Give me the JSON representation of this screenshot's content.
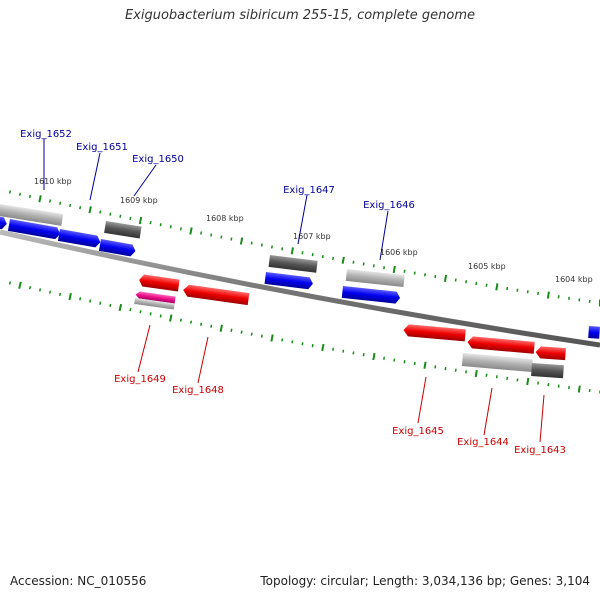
{
  "title": "Exiguobacterium sibiricum 255-15, complete genome",
  "accession_text": "Accession: NC_010556",
  "topology_text": "Topology: circular; Length: 3,034,136 bp; Genes: 3,104",
  "colors": {
    "plus_label": "#00009c",
    "minus_label": "#cc0000",
    "blue_gene": "#0000ee",
    "red_gene": "#ee0000",
    "gray_gene": "#555555",
    "light_gene": "#aaaaaa",
    "pink_gene": "#ee1188",
    "tick": "#1a8c1a",
    "backbone": "#888888"
  },
  "scale_labels": [
    "1610 kbp",
    "1609 kbp",
    "1608 kbp",
    "1607 kbp",
    "1606 kbp",
    "1605 kbp",
    "1604 kbp"
  ],
  "gene_labels_plus": [
    "Exig_1652",
    "Exig_1651",
    "Exig_1650",
    "Exig_1647",
    "Exig_1646"
  ],
  "gene_labels_minus": [
    "Exig_1649",
    "Exig_1648",
    "Exig_1645",
    "Exig_1644",
    "Exig_1643"
  ]
}
